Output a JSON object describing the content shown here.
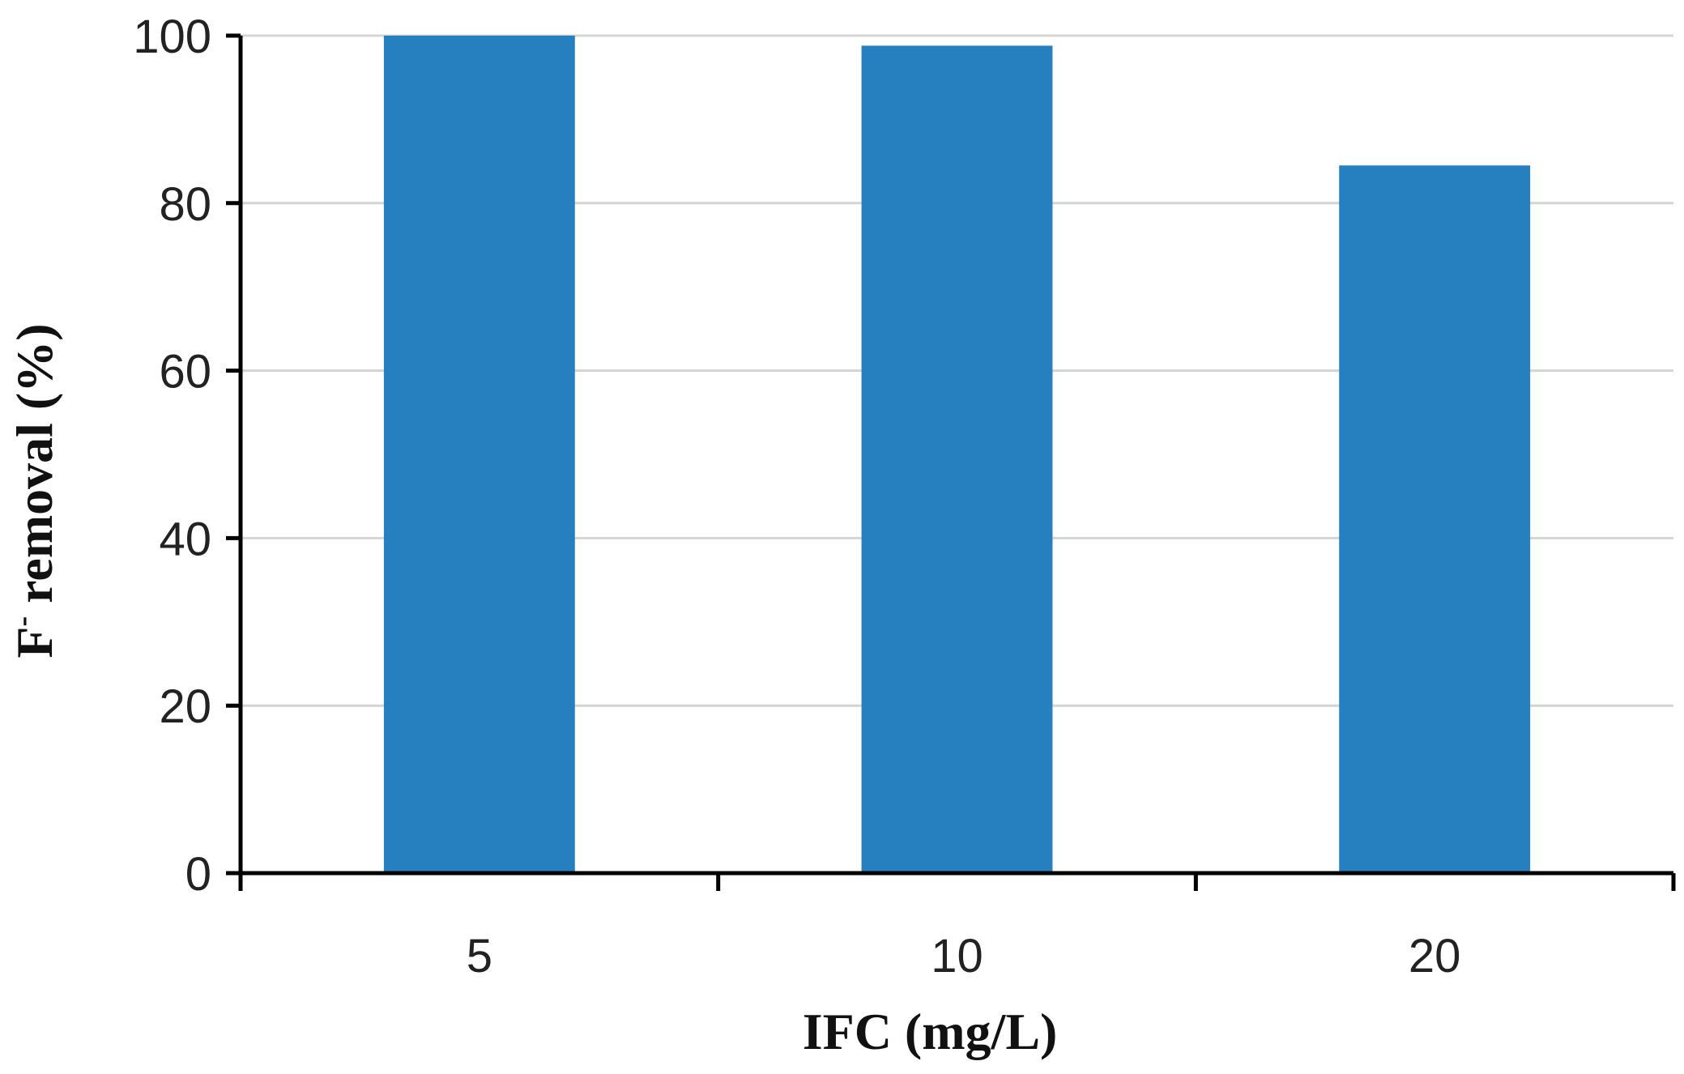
{
  "chart_data": {
    "type": "bar",
    "categories": [
      "5",
      "10",
      "20"
    ],
    "values": [
      100,
      98.8,
      84.5
    ],
    "xlabel": "IFC (mg/L)",
    "ylabel_main": "F",
    "ylabel_sup": "-",
    "ylabel_rest": " removal (%)",
    "ylim": [
      0,
      100
    ],
    "yticks": [
      "0",
      "20",
      "40",
      "60",
      "80",
      "100"
    ],
    "grid": true,
    "legend": "none",
    "bar_color": "#2680bf",
    "grid_color": "#d4d4d4",
    "axis_color": "#000000"
  }
}
